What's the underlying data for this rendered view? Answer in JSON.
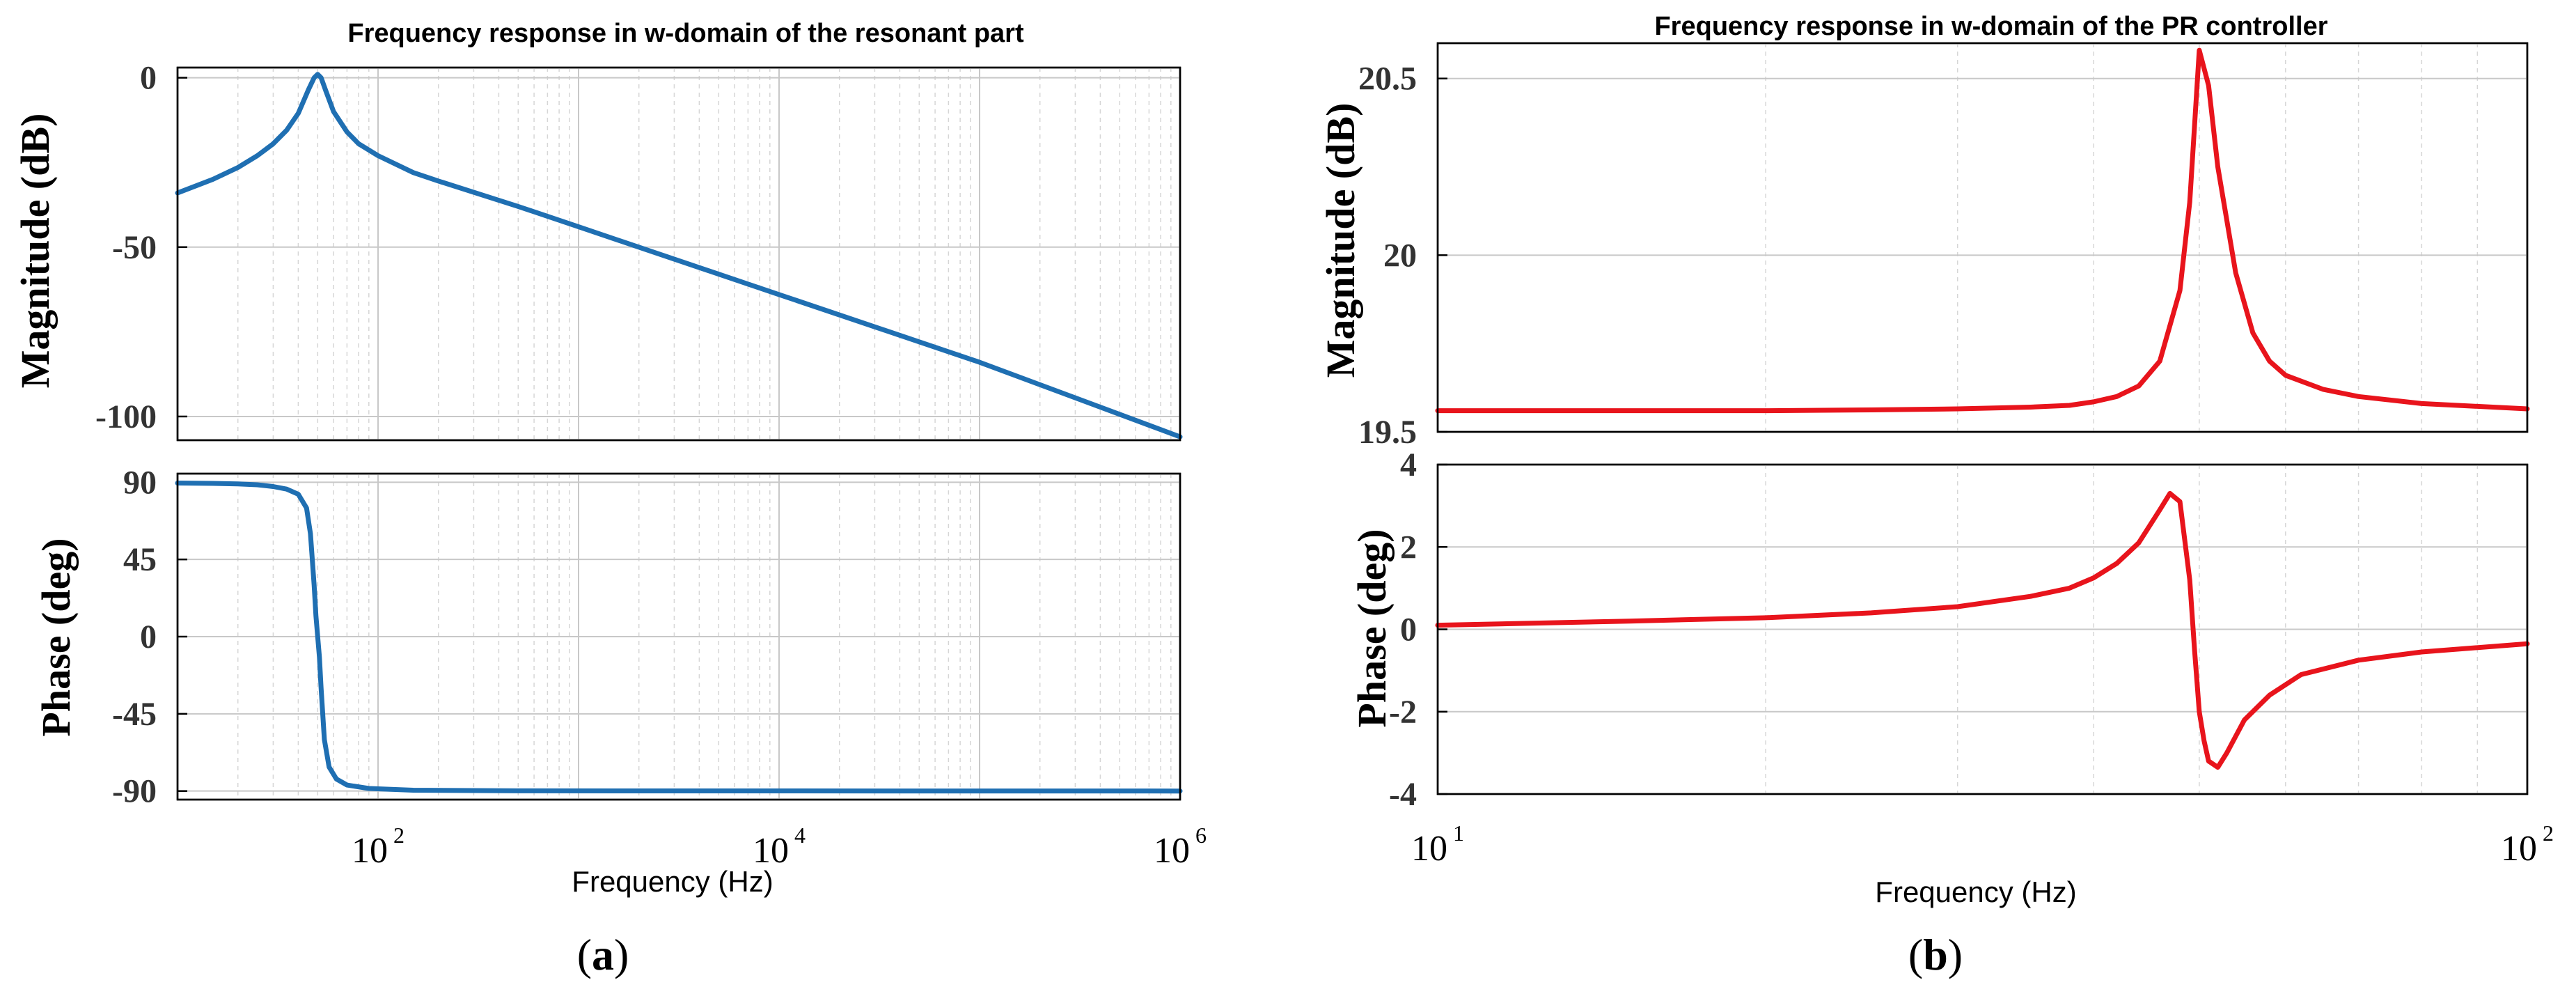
{
  "chart_data": [
    {
      "id": "a",
      "type": "line",
      "title": "Frequency response in w-domain of the resonant part",
      "caption": "a",
      "xlabel": "Frequency (Hz)",
      "xscale": "log",
      "xlim": [
        10,
        1000000
      ],
      "x_ticks": [
        {
          "base": "10",
          "exp": "2",
          "value": 100
        },
        {
          "base": "10",
          "exp": "4",
          "value": 10000
        },
        {
          "base": "10",
          "exp": "6",
          "value": 1000000
        }
      ],
      "line_color": "#1f6fb2",
      "panels": [
        {
          "ylabel": "Magnitude (dB)",
          "ylim": [
            -107,
            3
          ],
          "yticks": [
            "0",
            "-50",
            "-100"
          ],
          "ytick_values": [
            0,
            -50,
            -100
          ],
          "series": {
            "x": [
              10,
              15,
              20,
              25,
              30,
              35,
              40,
              45,
              48,
              50,
              52,
              55,
              60,
              70,
              80,
              100,
              150,
              200,
              500,
              1000,
              10000,
              100000,
              1000000
            ],
            "y": [
              -34,
              -30,
              -26.5,
              -23,
              -19.5,
              -15.5,
              -10.5,
              -3.5,
              0,
              1,
              0,
              -4,
              -10,
              -16,
              -19.5,
              -23,
              -28,
              -30.5,
              -38,
              -44,
              -64,
              -84,
              -106
            ]
          }
        },
        {
          "ylabel": "Phase (deg)",
          "ylim": [
            -95,
            95
          ],
          "yticks": [
            "90",
            "45",
            "0",
            "-45",
            "-90"
          ],
          "ytick_values": [
            90,
            45,
            0,
            -45,
            -90
          ],
          "series": {
            "x": [
              10,
              15,
              20,
              25,
              30,
              35,
              40,
              44,
              46,
              48,
              49,
              50,
              51,
              52,
              54,
              57,
              62,
              70,
              90,
              150,
              500,
              1000000
            ],
            "y": [
              89.5,
              89.3,
              89,
              88.5,
              87.5,
              86,
              83,
              75,
              60,
              30,
              12,
              0,
              -12,
              -30,
              -60,
              -76,
              -83,
              -86.5,
              -88.5,
              -89.5,
              -89.9,
              -90
            ]
          }
        }
      ]
    },
    {
      "id": "b",
      "type": "line",
      "title": "Frequency response in w-domain of the PR controller",
      "caption": "b",
      "xlabel": "Frequency (Hz)",
      "xscale": "log",
      "xlim": [
        10,
        100
      ],
      "x_ticks": [
        {
          "base": "10",
          "exp": "1",
          "value": 10
        },
        {
          "base": "10",
          "exp": "2",
          "value": 100
        }
      ],
      "line_color": "#e8141c",
      "panels": [
        {
          "ylabel": "Magnitude (dB)",
          "ylim": [
            19.5,
            20.6
          ],
          "yticks": [
            "20.5",
            "20",
            "19.5"
          ],
          "ytick_values": [
            20.5,
            20,
            19.5
          ],
          "series": {
            "x": [
              10,
              15,
              20,
              25,
              30,
              35,
              38,
              40,
              42,
              44,
              46,
              48,
              49,
              50,
              51,
              52,
              54,
              56,
              58,
              60,
              65,
              70,
              80,
              100
            ],
            "y": [
              19.56,
              19.56,
              19.56,
              19.562,
              19.565,
              19.57,
              19.575,
              19.585,
              19.6,
              19.63,
              19.7,
              19.9,
              20.15,
              20.58,
              20.48,
              20.25,
              19.95,
              19.78,
              19.7,
              19.66,
              19.62,
              19.6,
              19.58,
              19.565
            ]
          }
        },
        {
          "ylabel": "Phase (deg)",
          "ylim": [
            -4,
            4
          ],
          "yticks": [
            "4",
            "2",
            "0",
            "-2",
            "-4"
          ],
          "ytick_values": [
            4,
            2,
            0,
            -2,
            -4
          ],
          "series": {
            "x": [
              10,
              15,
              20,
              25,
              30,
              35,
              38,
              40,
              42,
              44,
              46,
              47,
              48,
              49,
              49.5,
              50,
              50.5,
              51,
              52,
              53,
              55,
              58,
              62,
              70,
              80,
              100
            ],
            "y": [
              0.1,
              0.2,
              0.28,
              0.4,
              0.55,
              0.8,
              1.0,
              1.25,
              1.6,
              2.1,
              2.9,
              3.3,
              3.1,
              1.2,
              -0.5,
              -2,
              -2.7,
              -3.2,
              -3.35,
              -3.0,
              -2.2,
              -1.6,
              -1.1,
              -0.75,
              -0.55,
              -0.35
            ]
          }
        }
      ]
    }
  ]
}
